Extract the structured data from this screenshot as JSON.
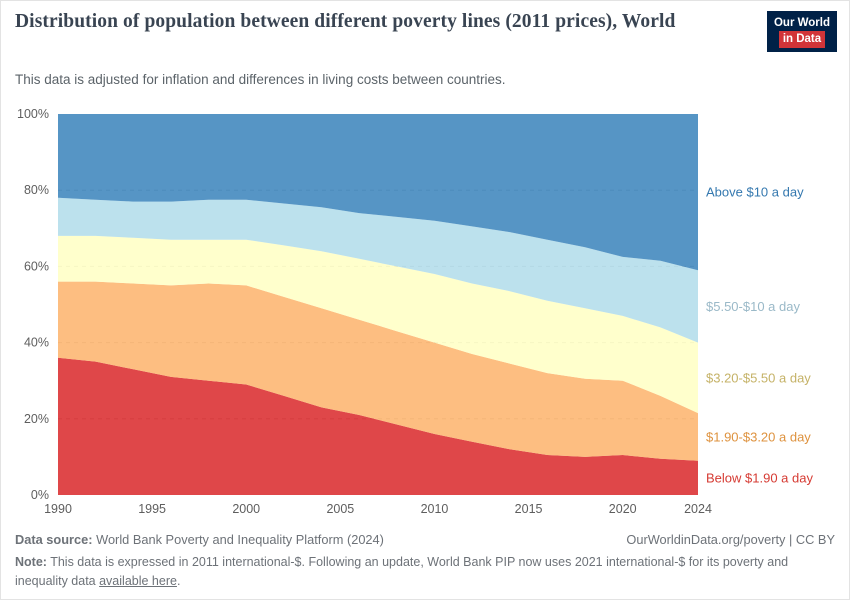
{
  "header": {
    "title": "Distribution of population between different poverty lines (2011 prices), World",
    "subtitle": "This data is adjusted for inflation and differences in living costs between countries.",
    "logo": {
      "line1": "Our World",
      "line2": "in Data",
      "background_color": "#002147",
      "accent_color": "#d13438"
    }
  },
  "chart_data": {
    "type": "area",
    "stacked": true,
    "normalized_to_100": true,
    "unit": "%",
    "ylim": [
      0,
      100
    ],
    "yticks": [
      0,
      20,
      40,
      60,
      80,
      100
    ],
    "ytick_labels": [
      "0%",
      "20%",
      "40%",
      "60%",
      "80%",
      "100%"
    ],
    "xticks": [
      1990,
      1995,
      2000,
      2005,
      2010,
      2015,
      2020,
      2024
    ],
    "x": [
      1990,
      1992,
      1994,
      1996,
      1998,
      2000,
      2002,
      2004,
      2006,
      2008,
      2010,
      2012,
      2014,
      2016,
      2018,
      2020,
      2022,
      2024
    ],
    "series": [
      {
        "id": "below-1-90",
        "name": "Below $1.90 a day",
        "color": "#d7191c",
        "label_color": "#d63b33",
        "values": [
          36,
          35,
          33,
          31,
          30,
          29,
          26,
          23,
          21,
          18.5,
          16,
          14,
          12,
          10.5,
          10,
          10.5,
          9.5,
          9
        ]
      },
      {
        "id": "1-90-3-20",
        "name": "$1.90-$3.20 a day",
        "color": "#fdae61",
        "label_color": "#de923e",
        "values": [
          20,
          21,
          22.5,
          24,
          25.5,
          26,
          26,
          26,
          25,
          24.5,
          24,
          23,
          22.5,
          21.5,
          20.5,
          19.5,
          16.5,
          12.5
        ]
      },
      {
        "id": "3-20-5-50",
        "name": "$3.20-$5.50 a day",
        "color": "#ffffbf",
        "label_color": "#c5b267",
        "values": [
          12,
          12,
          12,
          12,
          11.5,
          12,
          13.5,
          15,
          16,
          17,
          18,
          18.5,
          19,
          19,
          18.5,
          17,
          18,
          18.5
        ]
      },
      {
        "id": "5-50-10",
        "name": "$5.50-$10 a day",
        "color": "#abd9e9",
        "label_color": "#9ab9c8",
        "values": [
          10,
          9.5,
          9.5,
          10,
          10.5,
          10.5,
          11,
          11.5,
          12,
          13,
          14,
          15,
          15.5,
          16,
          16,
          15.5,
          17.5,
          19
        ]
      },
      {
        "id": "above-10",
        "name": "Above $10 a day",
        "color": "#2c7bb6",
        "label_color": "#3478af",
        "values": [
          22,
          22.5,
          23,
          23,
          22.5,
          22.5,
          23.5,
          24.5,
          26,
          27,
          28,
          29.5,
          31,
          33,
          35,
          37.5,
          38.5,
          41
        ]
      }
    ]
  },
  "footer": {
    "source_label": "Data source:",
    "source_text": "World Bank Poverty and Inequality Platform (2024)",
    "credit": "OurWorldinData.org/poverty | CC BY",
    "note_label": "Note:",
    "note_text": "This data is expressed in 2011 international-$. Following an update, World Bank PIP now uses 2021 international-$ for its poverty and inequality data",
    "note_link": "available here",
    "note_suffix": "."
  }
}
